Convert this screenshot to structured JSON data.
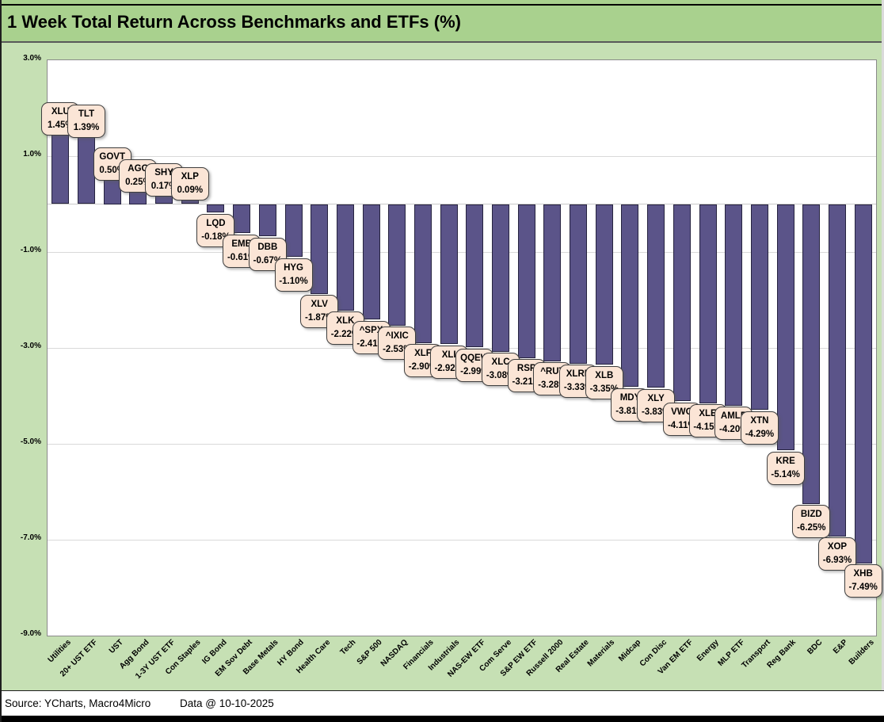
{
  "footer": {
    "source": "Source: YCharts, Macro4Micro",
    "date_note": "Data @ 10-10-2025"
  },
  "colors": {
    "title_bar_bg": "#A9D18E",
    "chart_bg": "#C6E0B4",
    "plot_bg": "#FFFFFF",
    "bar_fill": "#5B5489",
    "bar_border": "#26233F",
    "callout_bg": "#FBE5D6",
    "callout_border": "#3F3F3F",
    "gridline": "#D9D9D9"
  },
  "chart_data": {
    "type": "bar",
    "title": "1 Week Total Return Across Benchmarks and ETFs (%)",
    "xlabel": "",
    "ylabel": "",
    "ylim": [
      -9,
      3
    ],
    "grid": true,
    "legend_position": "none",
    "yticks": [
      {
        "value": 3,
        "label": "3.0%"
      },
      {
        "value": 1,
        "label": "1.0%"
      },
      {
        "value": -1,
        "label": "-1.0%"
      },
      {
        "value": -3,
        "label": "-3.0%"
      },
      {
        "value": -5,
        "label": "-5.0%"
      },
      {
        "value": -7,
        "label": "-7.0%"
      },
      {
        "value": -9,
        "label": "-9.0%"
      }
    ],
    "points": [
      {
        "category": "Utilities",
        "ticker": "XLU",
        "value": 1.45,
        "label": "1.45%"
      },
      {
        "category": "20+ UST ETF",
        "ticker": "TLT",
        "value": 1.39,
        "label": "1.39%"
      },
      {
        "category": "UST",
        "ticker": "GOVT",
        "value": 0.5,
        "label": "0.50%"
      },
      {
        "category": "Agg Bond",
        "ticker": "AGG",
        "value": 0.25,
        "label": "0.25%"
      },
      {
        "category": "1-3Y UST ETF",
        "ticker": "SHY",
        "value": 0.17,
        "label": "0.17%"
      },
      {
        "category": "Con Staples",
        "ticker": "XLP",
        "value": 0.09,
        "label": "0.09%"
      },
      {
        "category": "IG Bond",
        "ticker": "LQD",
        "value": -0.18,
        "label": "-0.18%"
      },
      {
        "category": "EM Sov Debt",
        "ticker": "EMB",
        "value": -0.61,
        "label": "-0.61%"
      },
      {
        "category": "Base Metals",
        "ticker": "DBB",
        "value": -0.67,
        "label": "-0.67%"
      },
      {
        "category": "HY Bond",
        "ticker": "HYG",
        "value": -1.1,
        "label": "-1.10%"
      },
      {
        "category": "Health Care",
        "ticker": "XLV",
        "value": -1.87,
        "label": "-1.87%"
      },
      {
        "category": "Tech",
        "ticker": "XLK",
        "value": -2.22,
        "label": "-2.22%"
      },
      {
        "category": "S&P 500",
        "ticker": "^SPX",
        "value": -2.41,
        "label": "-2.41%"
      },
      {
        "category": "NASDAQ",
        "ticker": "^IXIC",
        "value": -2.53,
        "label": "-2.53%"
      },
      {
        "category": "Financials",
        "ticker": "XLF",
        "value": -2.9,
        "label": "-2.90%"
      },
      {
        "category": "Industrials",
        "ticker": "XLI",
        "value": -2.92,
        "label": "-2.92%"
      },
      {
        "category": "NAS-EW ETF",
        "ticker": "QQEW",
        "value": -2.99,
        "label": "-2.99%"
      },
      {
        "category": "Com Serve",
        "ticker": "XLC",
        "value": -3.08,
        "label": "-3.08%"
      },
      {
        "category": "S&P EW ETF",
        "ticker": "RSP",
        "value": -3.21,
        "label": "-3.21%"
      },
      {
        "category": "Russell 2000",
        "ticker": "^RUT",
        "value": -3.28,
        "label": "-3.28%"
      },
      {
        "category": "Real Estate",
        "ticker": "XLRE",
        "value": -3.33,
        "label": "-3.33%"
      },
      {
        "category": "Materials",
        "ticker": "XLB",
        "value": -3.35,
        "label": "-3.35%"
      },
      {
        "category": "Midcap",
        "ticker": "MDY",
        "value": -3.81,
        "label": "-3.81%"
      },
      {
        "category": "Con Disc",
        "ticker": "XLY",
        "value": -3.83,
        "label": "-3.83%"
      },
      {
        "category": "Van EM ETF",
        "ticker": "VWO",
        "value": -4.11,
        "label": "-4.11%"
      },
      {
        "category": "Energy",
        "ticker": "XLE",
        "value": -4.15,
        "label": "-4.15%"
      },
      {
        "category": "MLP ETF",
        "ticker": "AMLP",
        "value": -4.2,
        "label": "-4.20%"
      },
      {
        "category": "Transport",
        "ticker": "XTN",
        "value": -4.29,
        "label": "-4.29%"
      },
      {
        "category": "Reg Bank",
        "ticker": "KRE",
        "value": -5.14,
        "label": "-5.14%"
      },
      {
        "category": "BDC",
        "ticker": "BIZD",
        "value": -6.25,
        "label": "-6.25%"
      },
      {
        "category": "E&P",
        "ticker": "XOP",
        "value": -6.93,
        "label": "-6.93%"
      },
      {
        "category": "Builders",
        "ticker": "XHB",
        "value": -7.49,
        "label": "-7.49%"
      }
    ]
  }
}
